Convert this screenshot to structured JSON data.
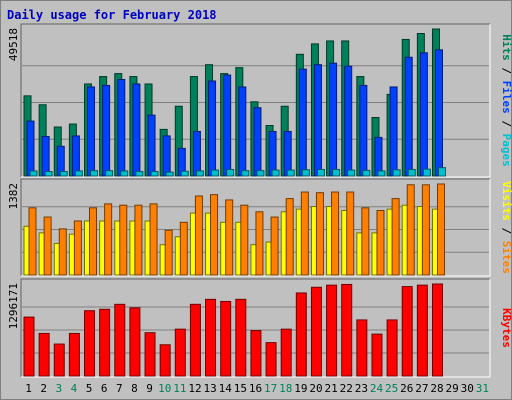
{
  "chart_data": {
    "type": "bar",
    "title": "Daily usage for February 2018",
    "days": [
      "1",
      "2",
      "3",
      "4",
      "5",
      "6",
      "7",
      "8",
      "9",
      "10",
      "11",
      "12",
      "13",
      "14",
      "15",
      "16",
      "17",
      "18",
      "19",
      "20",
      "21",
      "22",
      "23",
      "24",
      "25",
      "26",
      "27",
      "28",
      "29",
      "30",
      "31"
    ],
    "weekend_days": [
      3,
      4,
      10,
      11,
      17,
      18,
      24,
      25,
      31
    ],
    "panels": [
      {
        "name": "hits-files-pages",
        "ymax_label": "49518",
        "ymax": 49518,
        "side_labels": [
          {
            "text": "Pages",
            "color": "#00c0d0"
          },
          {
            "text": " / ",
            "color": "#000000"
          },
          {
            "text": "Files",
            "color": "#0040ff"
          },
          {
            "text": " / ",
            "color": "#000000"
          },
          {
            "text": "Hits",
            "color": "#00805a"
          }
        ],
        "series": [
          {
            "name": "Hits",
            "color": "#00805a",
            "values": [
              27000,
              24000,
              16500,
              17500,
              31000,
              33500,
              34500,
              33500,
              31000,
              15700,
              23500,
              33500,
              37500,
              34500,
              36500,
              25000,
              17000,
              23500,
              41000,
              44500,
              45500,
              45500,
              33500,
              19700,
              27500,
              46000,
              48000,
              49518
            ]
          },
          {
            "name": "Files",
            "color": "#0040ff",
            "values": [
              18500,
              13300,
              10000,
              13500,
              30000,
              30500,
              32500,
              31000,
              20500,
              13500,
              9300,
              15000,
              32000,
              34000,
              30000,
              23000,
              15000,
              15000,
              36000,
              37500,
              38000,
              37000,
              30500,
              13000,
              30000,
              40000,
              41500,
              42500
            ]
          },
          {
            "name": "Pages",
            "color": "#00c0d0",
            "values": [
              1700,
              1500,
              1500,
              1700,
              1800,
              1800,
              1700,
              1500,
              1500,
              1300,
              1600,
              1700,
              2000,
              2200,
              1800,
              1800,
              2000,
              2000,
              2100,
              2200,
              2200,
              2000,
              1900,
              1700,
              2100,
              2200,
              2300,
              2800
            ]
          }
        ]
      },
      {
        "name": "visits-sites",
        "ymax_label": "1382",
        "ymax": 1382,
        "side_labels": [
          {
            "text": "Sites",
            "color": "#ff8000"
          },
          {
            "text": " / ",
            "color": "#000000"
          },
          {
            "text": "Visits",
            "color": "#ffff00"
          }
        ],
        "series": [
          {
            "name": "Visits",
            "color": "#ffff00",
            "values": [
              740,
              640,
              480,
              620,
              820,
              820,
              820,
              820,
              820,
              460,
              580,
              940,
              940,
              800,
              800,
              460,
              500,
              960,
              1000,
              1040,
              1040,
              980,
              640,
              640,
              1000,
              1060,
              1040,
              1000
            ]
          },
          {
            "name": "Sites",
            "color": "#ff8000",
            "values": [
              1020,
              880,
              700,
              820,
              1020,
              1080,
              1060,
              1060,
              1080,
              680,
              800,
              1200,
              1220,
              1140,
              1060,
              960,
              880,
              1160,
              1260,
              1250,
              1260,
              1260,
              1020,
              980,
              1160,
              1370,
              1370,
              1382
            ]
          }
        ]
      },
      {
        "name": "kbytes",
        "ymax_label": "1296171",
        "ymax": 1296171,
        "side_labels": [
          {
            "text": "KBytes",
            "color": "#ff0000"
          }
        ],
        "series": [
          {
            "name": "KBytes",
            "color": "#ff0000",
            "values": [
              830000,
              600000,
              450000,
              600000,
              920000,
              940000,
              1010000,
              960000,
              610000,
              440000,
              660000,
              1010000,
              1080000,
              1050000,
              1080000,
              640000,
              470000,
              660000,
              1170000,
              1250000,
              1280000,
              1290000,
              790000,
              590000,
              790000,
              1260000,
              1280000,
              1296171
            ]
          }
        ]
      }
    ]
  }
}
